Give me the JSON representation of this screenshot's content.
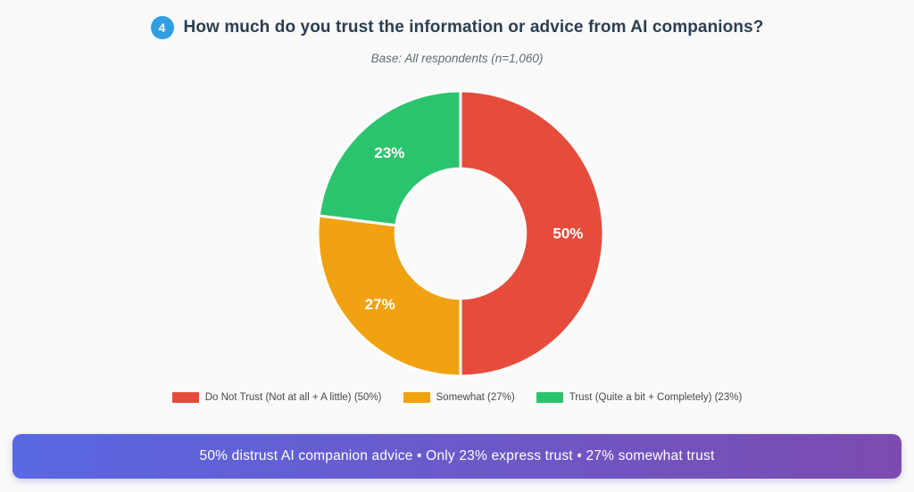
{
  "header": {
    "question_number": "4",
    "title": "How much do you trust the information or advice from AI companions?",
    "subtitle": "Base: All respondents (n=1,060)"
  },
  "chart_data": {
    "type": "pie",
    "variant": "doughnut",
    "title": "How much do you trust the information or advice from AI companions?",
    "categories": [
      "Do Not Trust (Not at all + A little)",
      "Somewhat",
      "Trust (Quite a bit + Completely)"
    ],
    "values": [
      50,
      27,
      23
    ],
    "unit": "%",
    "slice_labels": [
      "50%",
      "27%",
      "23%"
    ],
    "colors": [
      "#e64c3c",
      "#f0a211",
      "#2bc46e"
    ],
    "start_angle_deg": 0,
    "direction": "clockwise",
    "inner_radius_ratio": 0.455,
    "slice_border_color": "#ffffff",
    "legend_position": "bottom",
    "legend_labels": [
      "Do Not Trust (Not at all + A little) (50%)",
      "Somewhat (27%)",
      "Trust (Quite a bit + Completely) (23%)"
    ]
  },
  "banner": {
    "text": "50% distrust AI companion advice • Only 23% express trust • 27% somewhat trust",
    "gradient_left": "#5968e3",
    "gradient_right": "#7c4bb0"
  },
  "colors": {
    "badge_background": "#2f9fe2",
    "title_text": "#2c3e50",
    "subtitle_text": "#5f6b78",
    "page_background": "#fafafa"
  }
}
